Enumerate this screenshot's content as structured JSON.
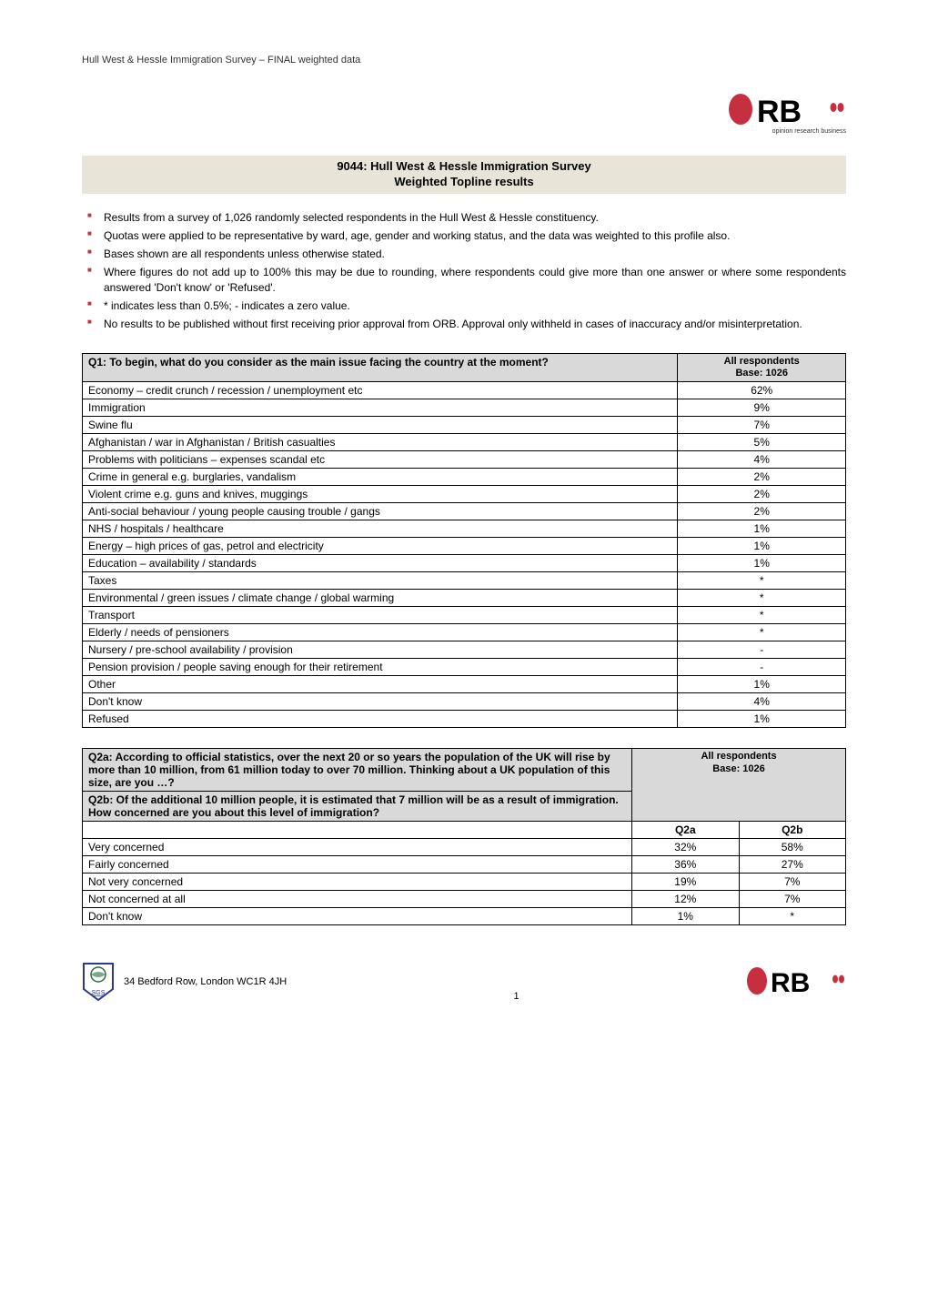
{
  "header_line": "Hull West & Hessle Immigration Survey – FINAL weighted data",
  "logo": {
    "text": "ORB",
    "color": "#c62f3f",
    "subline": "opinion research business"
  },
  "title_band": {
    "line1": "9044: Hull West & Hessle Immigration Survey",
    "line2": "Weighted Topline results"
  },
  "bullets": [
    "Results from a survey of 1,026 randomly selected respondents in the Hull West & Hessle constituency.",
    "Quotas were applied to be representative by ward, age, gender and working status, and the data was weighted to this profile also.",
    "Bases shown are all respondents unless otherwise stated.",
    "Where figures do not add up to 100% this may be due to rounding, where respondents could give more than one answer or where some respondents answered 'Don't know' or 'Refused'.",
    "* indicates less than 0.5%; - indicates a zero value.",
    "No results to be published without first receiving prior approval from ORB. Approval only withheld in cases of inaccuracy and/or misinterpretation."
  ],
  "table1": {
    "question": "Q1: To begin, what do you consider as the main issue facing the country at the moment?",
    "col_header": "All respondents\nBase: 1026",
    "col_header_line1": "All respondents",
    "col_header_line2": "Base: 1026",
    "col_widths": {
      "label": "78%",
      "value": "22%"
    },
    "header_bg": "#d9d9d9",
    "border_color": "#000000",
    "rows": [
      {
        "label": "Economy – credit crunch / recession / unemployment etc",
        "value": "62%"
      },
      {
        "label": "Immigration",
        "value": "9%"
      },
      {
        "label": "Swine flu",
        "value": "7%"
      },
      {
        "label": "Afghanistan / war in Afghanistan / British casualties",
        "value": "5%"
      },
      {
        "label": "Problems with politicians – expenses scandal etc",
        "value": "4%"
      },
      {
        "label": "Crime in general e.g. burglaries, vandalism",
        "value": "2%"
      },
      {
        "label": "Violent crime e.g. guns and knives, muggings",
        "value": "2%"
      },
      {
        "label": "Anti-social behaviour / young people causing trouble / gangs",
        "value": "2%"
      },
      {
        "label": "NHS / hospitals / healthcare",
        "value": "1%"
      },
      {
        "label": "Energy – high prices of gas, petrol and electricity",
        "value": "1%"
      },
      {
        "label": "Education – availability / standards",
        "value": "1%"
      },
      {
        "label": "Taxes",
        "value": "*"
      },
      {
        "label": "Environmental / green issues / climate change / global warming",
        "value": "*"
      },
      {
        "label": "Transport",
        "value": "*"
      },
      {
        "label": "Elderly / needs of pensioners",
        "value": "*"
      },
      {
        "label": "Nursery / pre-school availability / provision",
        "value": "-"
      },
      {
        "label": "Pension provision / people saving enough for their retirement",
        "value": "-"
      },
      {
        "label": "Other",
        "value": "1%"
      },
      {
        "label": "Don't know",
        "value": "4%"
      },
      {
        "label": "Refused",
        "value": "1%"
      }
    ]
  },
  "table2": {
    "question_a": "Q2a: According to official statistics, over the next 20 or so years the population of the UK will rise by more than 10 million, from 61 million today to over 70 million.  Thinking about a UK population of this size, are you …?",
    "question_b": "Q2b: Of the additional 10 million people, it is estimated that 7 million will be as a result of immigration.  How concerned are you about this level of immigration?",
    "col_header_line1": "All respondents",
    "col_header_line2": "Base: 1026",
    "sub_a": "Q2a",
    "sub_b": "Q2b",
    "col_widths": {
      "label": "72%",
      "a": "14%",
      "b": "14%"
    },
    "header_bg": "#d9d9d9",
    "border_color": "#000000",
    "rows": [
      {
        "label": "Very concerned",
        "a": "32%",
        "b": "58%"
      },
      {
        "label": "Fairly concerned",
        "a": "36%",
        "b": "27%"
      },
      {
        "label": "Not very concerned",
        "a": "19%",
        "b": "7%"
      },
      {
        "label": "Not concerned at all",
        "a": "12%",
        "b": "7%"
      },
      {
        "label": "Don't know",
        "a": "1%",
        "b": "*"
      }
    ]
  },
  "footer": {
    "address": "34 Bedford Row, London WC1R 4JH",
    "page": "1",
    "sgs_label": "SGS"
  }
}
